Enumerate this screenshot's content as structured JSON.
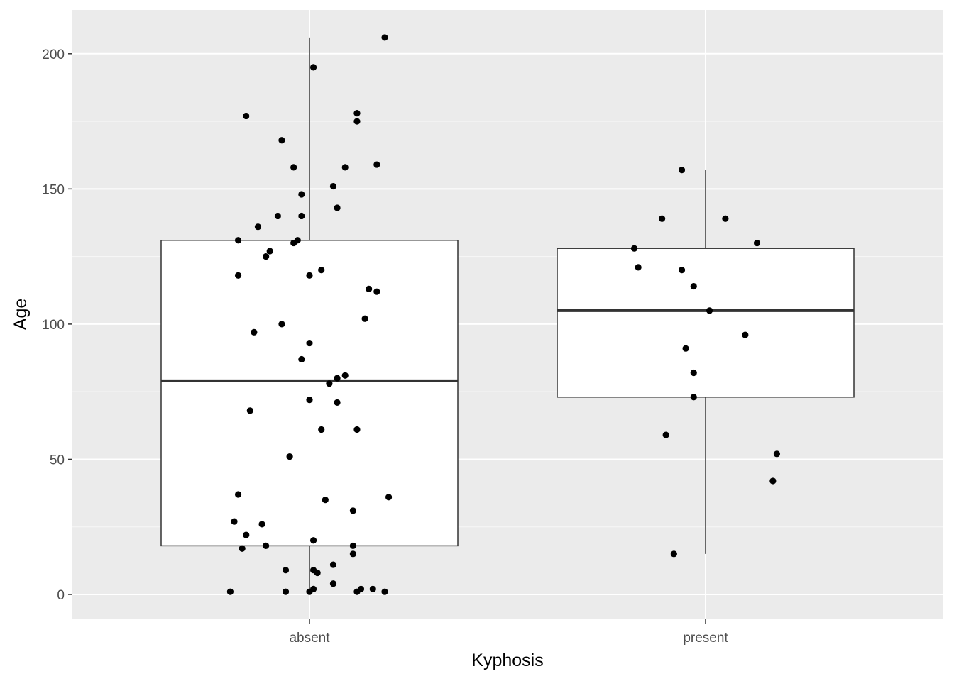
{
  "chart_data": {
    "type": "boxplot",
    "title": "",
    "xlabel": "Kyphosis",
    "ylabel": "Age",
    "categories": [
      "absent",
      "present"
    ],
    "ylim": [
      -9,
      216
    ],
    "yticks": [
      0,
      50,
      100,
      150,
      200
    ],
    "grid": true,
    "panel_background": "#EBEBEB",
    "grid_color": "#FFFFFF",
    "box_fill": "#FFFFFF",
    "box_stroke": "#333333",
    "point_color": "#000000",
    "boxes": [
      {
        "category": "absent",
        "whisker_low": 1,
        "q1": 18,
        "median": 79,
        "q3": 131,
        "whisker_high": 206
      },
      {
        "category": "present",
        "whisker_low": 15,
        "q1": 73,
        "median": 105,
        "q3": 128,
        "whisker_high": 157
      }
    ],
    "points": [
      {
        "category": "absent",
        "jitter": 0.19,
        "y": 206
      },
      {
        "category": "absent",
        "jitter": 0.01,
        "y": 195
      },
      {
        "category": "absent",
        "jitter": -0.16,
        "y": 177
      },
      {
        "category": "absent",
        "jitter": 0.12,
        "y": 178
      },
      {
        "category": "absent",
        "jitter": 0.12,
        "y": 175
      },
      {
        "category": "absent",
        "jitter": -0.07,
        "y": 168
      },
      {
        "category": "absent",
        "jitter": -0.04,
        "y": 158
      },
      {
        "category": "absent",
        "jitter": 0.09,
        "y": 158
      },
      {
        "category": "absent",
        "jitter": 0.17,
        "y": 159
      },
      {
        "category": "absent",
        "jitter": 0.06,
        "y": 151
      },
      {
        "category": "absent",
        "jitter": -0.02,
        "y": 148
      },
      {
        "category": "absent",
        "jitter": 0.07,
        "y": 143
      },
      {
        "category": "absent",
        "jitter": -0.08,
        "y": 140
      },
      {
        "category": "absent",
        "jitter": -0.02,
        "y": 140
      },
      {
        "category": "absent",
        "jitter": -0.13,
        "y": 136
      },
      {
        "category": "absent",
        "jitter": -0.18,
        "y": 131
      },
      {
        "category": "absent",
        "jitter": -0.03,
        "y": 131
      },
      {
        "category": "absent",
        "jitter": -0.04,
        "y": 130
      },
      {
        "category": "absent",
        "jitter": -0.1,
        "y": 127
      },
      {
        "category": "absent",
        "jitter": -0.11,
        "y": 125
      },
      {
        "category": "absent",
        "jitter": 0.03,
        "y": 120
      },
      {
        "category": "absent",
        "jitter": -0.18,
        "y": 118
      },
      {
        "category": "absent",
        "jitter": 0.0,
        "y": 118
      },
      {
        "category": "absent",
        "jitter": 0.15,
        "y": 113
      },
      {
        "category": "absent",
        "jitter": 0.17,
        "y": 112
      },
      {
        "category": "absent",
        "jitter": 0.14,
        "y": 102
      },
      {
        "category": "absent",
        "jitter": -0.07,
        "y": 100
      },
      {
        "category": "absent",
        "jitter": -0.14,
        "y": 97
      },
      {
        "category": "absent",
        "jitter": 0.0,
        "y": 93
      },
      {
        "category": "absent",
        "jitter": -0.02,
        "y": 87
      },
      {
        "category": "absent",
        "jitter": 0.09,
        "y": 81
      },
      {
        "category": "absent",
        "jitter": 0.07,
        "y": 80
      },
      {
        "category": "absent",
        "jitter": 0.05,
        "y": 78
      },
      {
        "category": "absent",
        "jitter": 0.0,
        "y": 72
      },
      {
        "category": "absent",
        "jitter": 0.07,
        "y": 71
      },
      {
        "category": "absent",
        "jitter": -0.15,
        "y": 68
      },
      {
        "category": "absent",
        "jitter": 0.03,
        "y": 61
      },
      {
        "category": "absent",
        "jitter": 0.12,
        "y": 61
      },
      {
        "category": "absent",
        "jitter": -0.05,
        "y": 51
      },
      {
        "category": "absent",
        "jitter": -0.18,
        "y": 37
      },
      {
        "category": "absent",
        "jitter": 0.2,
        "y": 36
      },
      {
        "category": "absent",
        "jitter": 0.04,
        "y": 35
      },
      {
        "category": "absent",
        "jitter": 0.11,
        "y": 31
      },
      {
        "category": "absent",
        "jitter": -0.19,
        "y": 27
      },
      {
        "category": "absent",
        "jitter": -0.12,
        "y": 26
      },
      {
        "category": "absent",
        "jitter": -0.16,
        "y": 22
      },
      {
        "category": "absent",
        "jitter": 0.01,
        "y": 20
      },
      {
        "category": "absent",
        "jitter": -0.11,
        "y": 18
      },
      {
        "category": "absent",
        "jitter": 0.11,
        "y": 18
      },
      {
        "category": "absent",
        "jitter": -0.17,
        "y": 17
      },
      {
        "category": "absent",
        "jitter": 0.11,
        "y": 15
      },
      {
        "category": "absent",
        "jitter": 0.06,
        "y": 11
      },
      {
        "category": "absent",
        "jitter": -0.06,
        "y": 9
      },
      {
        "category": "absent",
        "jitter": 0.01,
        "y": 9
      },
      {
        "category": "absent",
        "jitter": 0.02,
        "y": 8
      },
      {
        "category": "absent",
        "jitter": 0.06,
        "y": 4
      },
      {
        "category": "absent",
        "jitter": 0.01,
        "y": 2
      },
      {
        "category": "absent",
        "jitter": 0.16,
        "y": 2
      },
      {
        "category": "absent",
        "jitter": 0.13,
        "y": 2
      },
      {
        "category": "absent",
        "jitter": -0.2,
        "y": 1
      },
      {
        "category": "absent",
        "jitter": -0.06,
        "y": 1
      },
      {
        "category": "absent",
        "jitter": 0.0,
        "y": 1
      },
      {
        "category": "absent",
        "jitter": 0.12,
        "y": 1
      },
      {
        "category": "absent",
        "jitter": 0.19,
        "y": 1
      },
      {
        "category": "present",
        "jitter": -0.06,
        "y": 157
      },
      {
        "category": "present",
        "jitter": -0.11,
        "y": 139
      },
      {
        "category": "present",
        "jitter": 0.05,
        "y": 139
      },
      {
        "category": "present",
        "jitter": 0.13,
        "y": 130
      },
      {
        "category": "present",
        "jitter": -0.18,
        "y": 128
      },
      {
        "category": "present",
        "jitter": -0.17,
        "y": 121
      },
      {
        "category": "present",
        "jitter": -0.06,
        "y": 120
      },
      {
        "category": "present",
        "jitter": -0.03,
        "y": 114
      },
      {
        "category": "present",
        "jitter": 0.01,
        "y": 105
      },
      {
        "category": "present",
        "jitter": 0.1,
        "y": 96
      },
      {
        "category": "present",
        "jitter": -0.05,
        "y": 91
      },
      {
        "category": "present",
        "jitter": -0.03,
        "y": 82
      },
      {
        "category": "present",
        "jitter": -0.03,
        "y": 73
      },
      {
        "category": "present",
        "jitter": -0.1,
        "y": 59
      },
      {
        "category": "present",
        "jitter": 0.18,
        "y": 52
      },
      {
        "category": "present",
        "jitter": 0.17,
        "y": 42
      },
      {
        "category": "present",
        "jitter": -0.08,
        "y": 15
      }
    ]
  }
}
